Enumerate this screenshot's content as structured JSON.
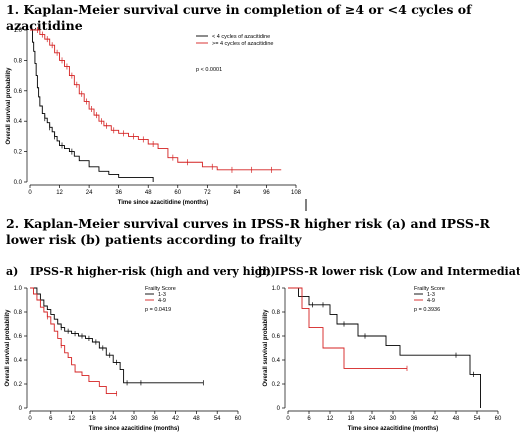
{
  "headings": {
    "h1": "1. Kaplan-Meier survival curve in completion of ≥4 or <4 cycles of azacitidine",
    "h2": "2. Kaplan-Meier survival curves in IPSS-R higher risk (a) and IPSS-R lower risk (b) patients according to frailty",
    "sub_a": "a)   IPSS-R higher-risk (high and very high)",
    "sub_b": "b) IPSS-R lower risk (Low and Intermediate)"
  },
  "colors": {
    "black": "#000000",
    "red": "#d42020"
  },
  "chart_data": [
    {
      "type": "line",
      "xlabel": "Time since azacitidine (months)",
      "ylabel": "Overall survival probability",
      "xlim": [
        0,
        108
      ],
      "ylim": [
        0,
        1
      ],
      "xticks": [
        0,
        12,
        24,
        36,
        48,
        60,
        72,
        84,
        96,
        108
      ],
      "yticks": [
        "0.0",
        "0.2",
        "0.4",
        "0.6",
        "0.8",
        "1.0"
      ],
      "legend_position": "top-right",
      "legend_title": "",
      "annotation": "p < 0.0001",
      "series": [
        {
          "name": "< 4 cycles of azacitidine",
          "color": "#000000",
          "x": [
            0,
            1,
            1.5,
            2,
            2.5,
            3,
            3.5,
            4,
            5,
            6,
            7,
            8,
            9,
            10,
            11,
            12,
            14,
            16,
            18,
            20,
            24,
            28,
            32,
            36,
            50
          ],
          "y": [
            1.0,
            0.92,
            0.86,
            0.78,
            0.7,
            0.62,
            0.56,
            0.5,
            0.45,
            0.42,
            0.39,
            0.36,
            0.33,
            0.3,
            0.27,
            0.24,
            0.22,
            0.2,
            0.17,
            0.14,
            0.1,
            0.07,
            0.05,
            0.03,
            0.0
          ],
          "censor_x": [
            6,
            8,
            10,
            13,
            17
          ]
        },
        {
          "name": ">= 4 cycles of azacitidine",
          "color": "#d42020",
          "x": [
            0,
            4,
            6,
            8,
            10,
            12,
            14,
            16,
            18,
            20,
            22,
            24,
            26,
            28,
            30,
            33,
            36,
            40,
            44,
            48,
            52,
            56,
            60,
            66,
            70,
            76,
            84,
            96,
            102
          ],
          "y": [
            1.0,
            0.97,
            0.94,
            0.9,
            0.85,
            0.8,
            0.76,
            0.7,
            0.64,
            0.58,
            0.53,
            0.48,
            0.44,
            0.4,
            0.37,
            0.34,
            0.32,
            0.3,
            0.28,
            0.25,
            0.22,
            0.16,
            0.13,
            0.13,
            0.1,
            0.08,
            0.08,
            0.08,
            0.08
          ],
          "censor_x": [
            3,
            5,
            7,
            9,
            11,
            13,
            15,
            17,
            19,
            21,
            23,
            25,
            27,
            29,
            31,
            34,
            38,
            42,
            46,
            50,
            58,
            64,
            74,
            82,
            90,
            98
          ]
        }
      ]
    },
    {
      "type": "line",
      "xlabel": "Time since azacitidine (months)",
      "ylabel": "Overall survival probability",
      "xlim": [
        0,
        60
      ],
      "ylim": [
        0,
        1
      ],
      "xticks": [
        0,
        6,
        12,
        18,
        24,
        30,
        36,
        42,
        48,
        54,
        60
      ],
      "yticks": [
        "0",
        "0.2",
        "0.4",
        "0.6",
        "0.8",
        "1.0"
      ],
      "legend_position": "top-right",
      "legend_title": "Frailty Score",
      "annotation": "p = 0.0419",
      "series": [
        {
          "name": "1-3",
          "color": "#000000",
          "x": [
            0,
            2,
            3,
            4,
            5,
            6,
            7,
            8,
            9,
            10,
            12,
            14,
            16,
            18,
            20,
            22,
            24,
            26,
            27,
            50
          ],
          "y": [
            1.0,
            0.95,
            0.9,
            0.85,
            0.82,
            0.78,
            0.74,
            0.7,
            0.67,
            0.64,
            0.62,
            0.6,
            0.58,
            0.55,
            0.5,
            0.44,
            0.38,
            0.32,
            0.21,
            0.21
          ],
          "censor_x": [
            9,
            11,
            13,
            15,
            17,
            19,
            21,
            23,
            25,
            28,
            32,
            50
          ]
        },
        {
          "name": "4-9",
          "color": "#d42020",
          "x": [
            0,
            1,
            2,
            3,
            4,
            5,
            6,
            7,
            8,
            9,
            10,
            11,
            12,
            13,
            15,
            17,
            20,
            22,
            25
          ],
          "y": [
            1.0,
            0.95,
            0.9,
            0.84,
            0.8,
            0.76,
            0.7,
            0.64,
            0.58,
            0.52,
            0.46,
            0.42,
            0.36,
            0.3,
            0.27,
            0.22,
            0.18,
            0.12,
            0.12
          ],
          "censor_x": [
            5,
            9,
            25
          ]
        }
      ]
    },
    {
      "type": "line",
      "xlabel": "Time since azacitidine (months)",
      "ylabel": "Overall survival probability",
      "xlim": [
        0,
        60
      ],
      "ylim": [
        0,
        1
      ],
      "xticks": [
        0,
        6,
        12,
        18,
        24,
        30,
        36,
        42,
        48,
        54,
        60
      ],
      "yticks": [
        "0",
        "0.2",
        "0.4",
        "0.6",
        "0.8",
        "1.0"
      ],
      "legend_position": "top-right",
      "legend_title": "Frailty Score",
      "annotation": "p = 0.3936",
      "series": [
        {
          "name": "1-3",
          "color": "#000000",
          "x": [
            0,
            3,
            6,
            12,
            14,
            20,
            28,
            32,
            52,
            55
          ],
          "y": [
            1.0,
            0.93,
            0.86,
            0.78,
            0.7,
            0.6,
            0.52,
            0.44,
            0.28,
            0.0
          ],
          "censor_x": [
            7,
            10,
            16,
            22,
            48,
            53
          ]
        },
        {
          "name": "4-9",
          "color": "#d42020",
          "x": [
            0,
            4,
            6,
            8,
            10,
            16,
            34
          ],
          "y": [
            1.0,
            0.83,
            0.67,
            0.67,
            0.5,
            0.33,
            0.33
          ],
          "censor_x": [
            34
          ]
        }
      ]
    }
  ]
}
